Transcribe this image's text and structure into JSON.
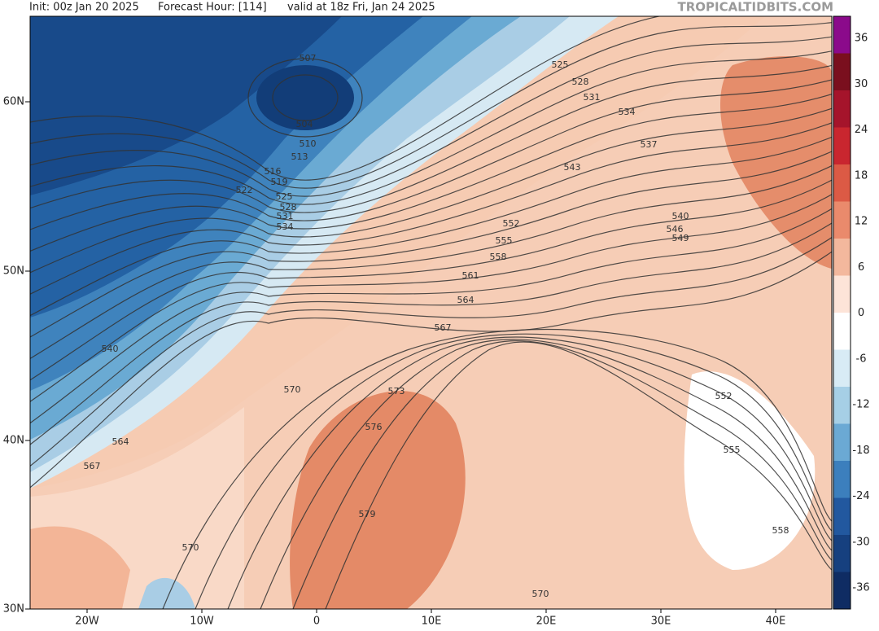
{
  "header": {
    "init": "Init: 00z Jan 20 2025",
    "forecast_hour": "Forecast Hour: [114]",
    "valid": "valid at 18z Fri, Jan 24 2025",
    "watermark": "TROPICALTIDBITS.COM"
  },
  "map": {
    "lat_labels": [
      "60N",
      "50N",
      "40N",
      "30N"
    ],
    "lon_labels": [
      "20W",
      "10W",
      "0",
      "10E",
      "20E",
      "30E",
      "40E"
    ],
    "contour_labels": [
      507,
      504,
      510,
      513,
      516,
      519,
      522,
      525,
      528,
      531,
      534,
      525,
      528,
      531,
      534,
      537,
      543,
      540,
      546,
      549,
      552,
      555,
      558,
      561,
      564,
      567,
      570,
      573,
      576,
      579,
      540,
      564,
      567,
      570,
      570,
      552,
      555,
      558
    ]
  },
  "colorbar": {
    "ticks": [
      36,
      30,
      24,
      18,
      12,
      6,
      0,
      -6,
      -12,
      -18,
      -24,
      -30,
      -36
    ]
  }
}
